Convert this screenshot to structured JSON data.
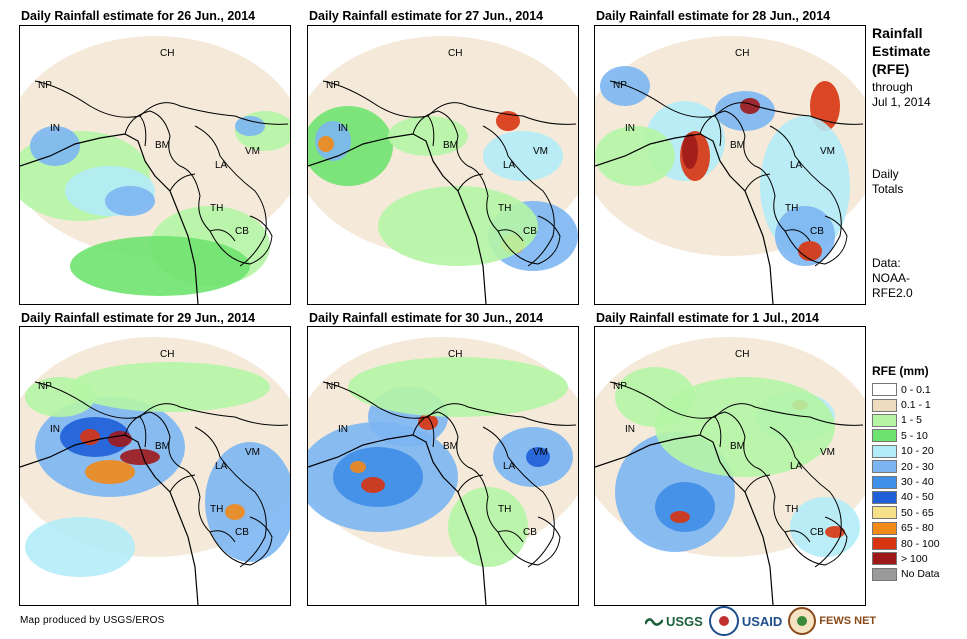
{
  "panels": [
    {
      "title": "Daily Rainfall estimate for 26 Jun., 2014"
    },
    {
      "title": "Daily Rainfall estimate for 27 Jun., 2014"
    },
    {
      "title": "Daily Rainfall estimate for 28 Jun., 2014"
    },
    {
      "title": "Daily Rainfall estimate for 29 Jun., 2014"
    },
    {
      "title": "Daily Rainfall estimate for 30 Jun., 2014"
    },
    {
      "title": "Daily Rainfall estimate for 1 Jul., 2014"
    }
  ],
  "country_labels": [
    "CH",
    "NP",
    "IN",
    "BM",
    "LA",
    "VM",
    "TH",
    "CB"
  ],
  "sidebar": {
    "title_line1": "Rainfall",
    "title_line2": "Estimate",
    "title_line3": "(RFE)",
    "through": "through",
    "date": "Jul 1, 2014",
    "daily": "Daily",
    "totals": "Totals",
    "data_label": "Data:",
    "data_source1": "NOAA-",
    "data_source2": "RFE2.0"
  },
  "legend": {
    "title": "RFE (mm)",
    "items": [
      {
        "label": "0 - 0.1",
        "color": "#ffffff"
      },
      {
        "label": "0.1 - 1",
        "color": "#eedcbf"
      },
      {
        "label": "1 - 5",
        "color": "#b5f5a5"
      },
      {
        "label": "5 - 10",
        "color": "#6fe36f"
      },
      {
        "label": "10 - 20",
        "color": "#b2ecf7"
      },
      {
        "label": "20 - 30",
        "color": "#7cb6f2"
      },
      {
        "label": "30 - 40",
        "color": "#3f8ee8"
      },
      {
        "label": "40 - 50",
        "color": "#1f5fd8"
      },
      {
        "label": "50 - 65",
        "color": "#f6e08a"
      },
      {
        "label": "65 - 80",
        "color": "#f28a18"
      },
      {
        "label": "80 - 100",
        "color": "#d83410"
      },
      {
        "label": "> 100",
        "color": "#9e1a1a"
      },
      {
        "label": "No Data",
        "color": "#9a9a9a"
      }
    ]
  },
  "credit": "Map produced by USGS/EROS",
  "logos": {
    "usgs": "USGS",
    "usaid": "USAID",
    "fews": "FEWS NET"
  }
}
